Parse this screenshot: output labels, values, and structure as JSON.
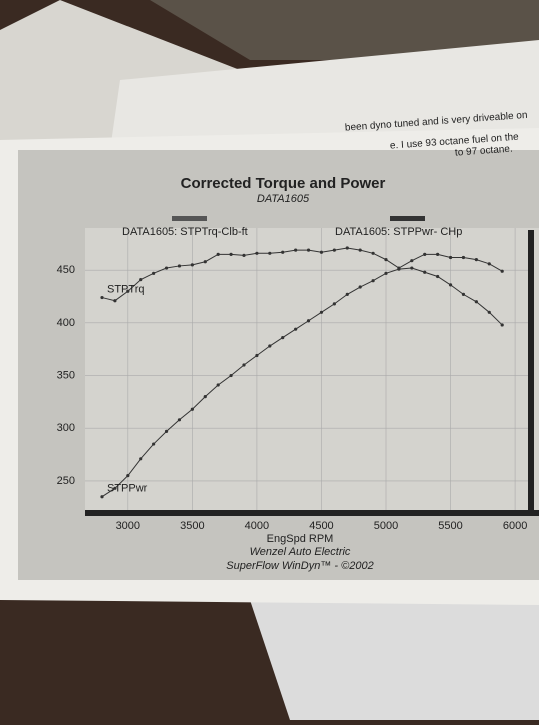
{
  "chart_data": {
    "type": "line",
    "title": "Corrected Torque and Power",
    "subtitle": "DATA1605",
    "x_label": "EngSpd RPM",
    "footer": [
      "Wenzel Auto Electric",
      "SuperFlow WinDyn™ - ©2002"
    ],
    "note_lines": [
      "been dyno tuned and is very driveable on",
      "e. I use 93 octane fuel on the",
      "to 97 octane."
    ],
    "x": [
      2800,
      2900,
      3000,
      3100,
      3200,
      3300,
      3400,
      3500,
      3600,
      3700,
      3800,
      3900,
      4000,
      4100,
      4200,
      4300,
      4400,
      4500,
      4600,
      4700,
      4800,
      4900,
      5000,
      5100,
      5200,
      5300,
      5400,
      5500,
      5600,
      5700,
      5800,
      5900
    ],
    "series": [
      {
        "name": "DATA1605: STPTrq-Clb-ft",
        "label": "STPTrq",
        "color": "#333333",
        "values": [
          424,
          421,
          430,
          441,
          447,
          452,
          454,
          455,
          458,
          465,
          465,
          464,
          466,
          466,
          467,
          469,
          469,
          467,
          469,
          471,
          469,
          466,
          460,
          452,
          459,
          465,
          465,
          462,
          462,
          460,
          456,
          449
        ]
      },
      {
        "name": "DATA1605: STPPwr- CHp",
        "label": "STPPwr",
        "color": "#333333",
        "values": [
          235,
          243,
          255,
          271,
          285,
          297,
          308,
          318,
          330,
          341,
          350,
          360,
          369,
          378,
          386,
          394,
          402,
          410,
          418,
          427,
          434,
          440,
          447,
          451,
          452,
          448,
          444,
          436,
          427,
          420,
          410,
          398
        ]
      }
    ],
    "xlim": [
      2800,
      6100
    ],
    "xticks": [
      3000,
      3500,
      4000,
      4500,
      5000,
      5500,
      6000
    ],
    "ylim": [
      230,
      490
    ],
    "yticks": [
      250,
      300,
      350,
      400,
      450
    ],
    "grid": true
  }
}
